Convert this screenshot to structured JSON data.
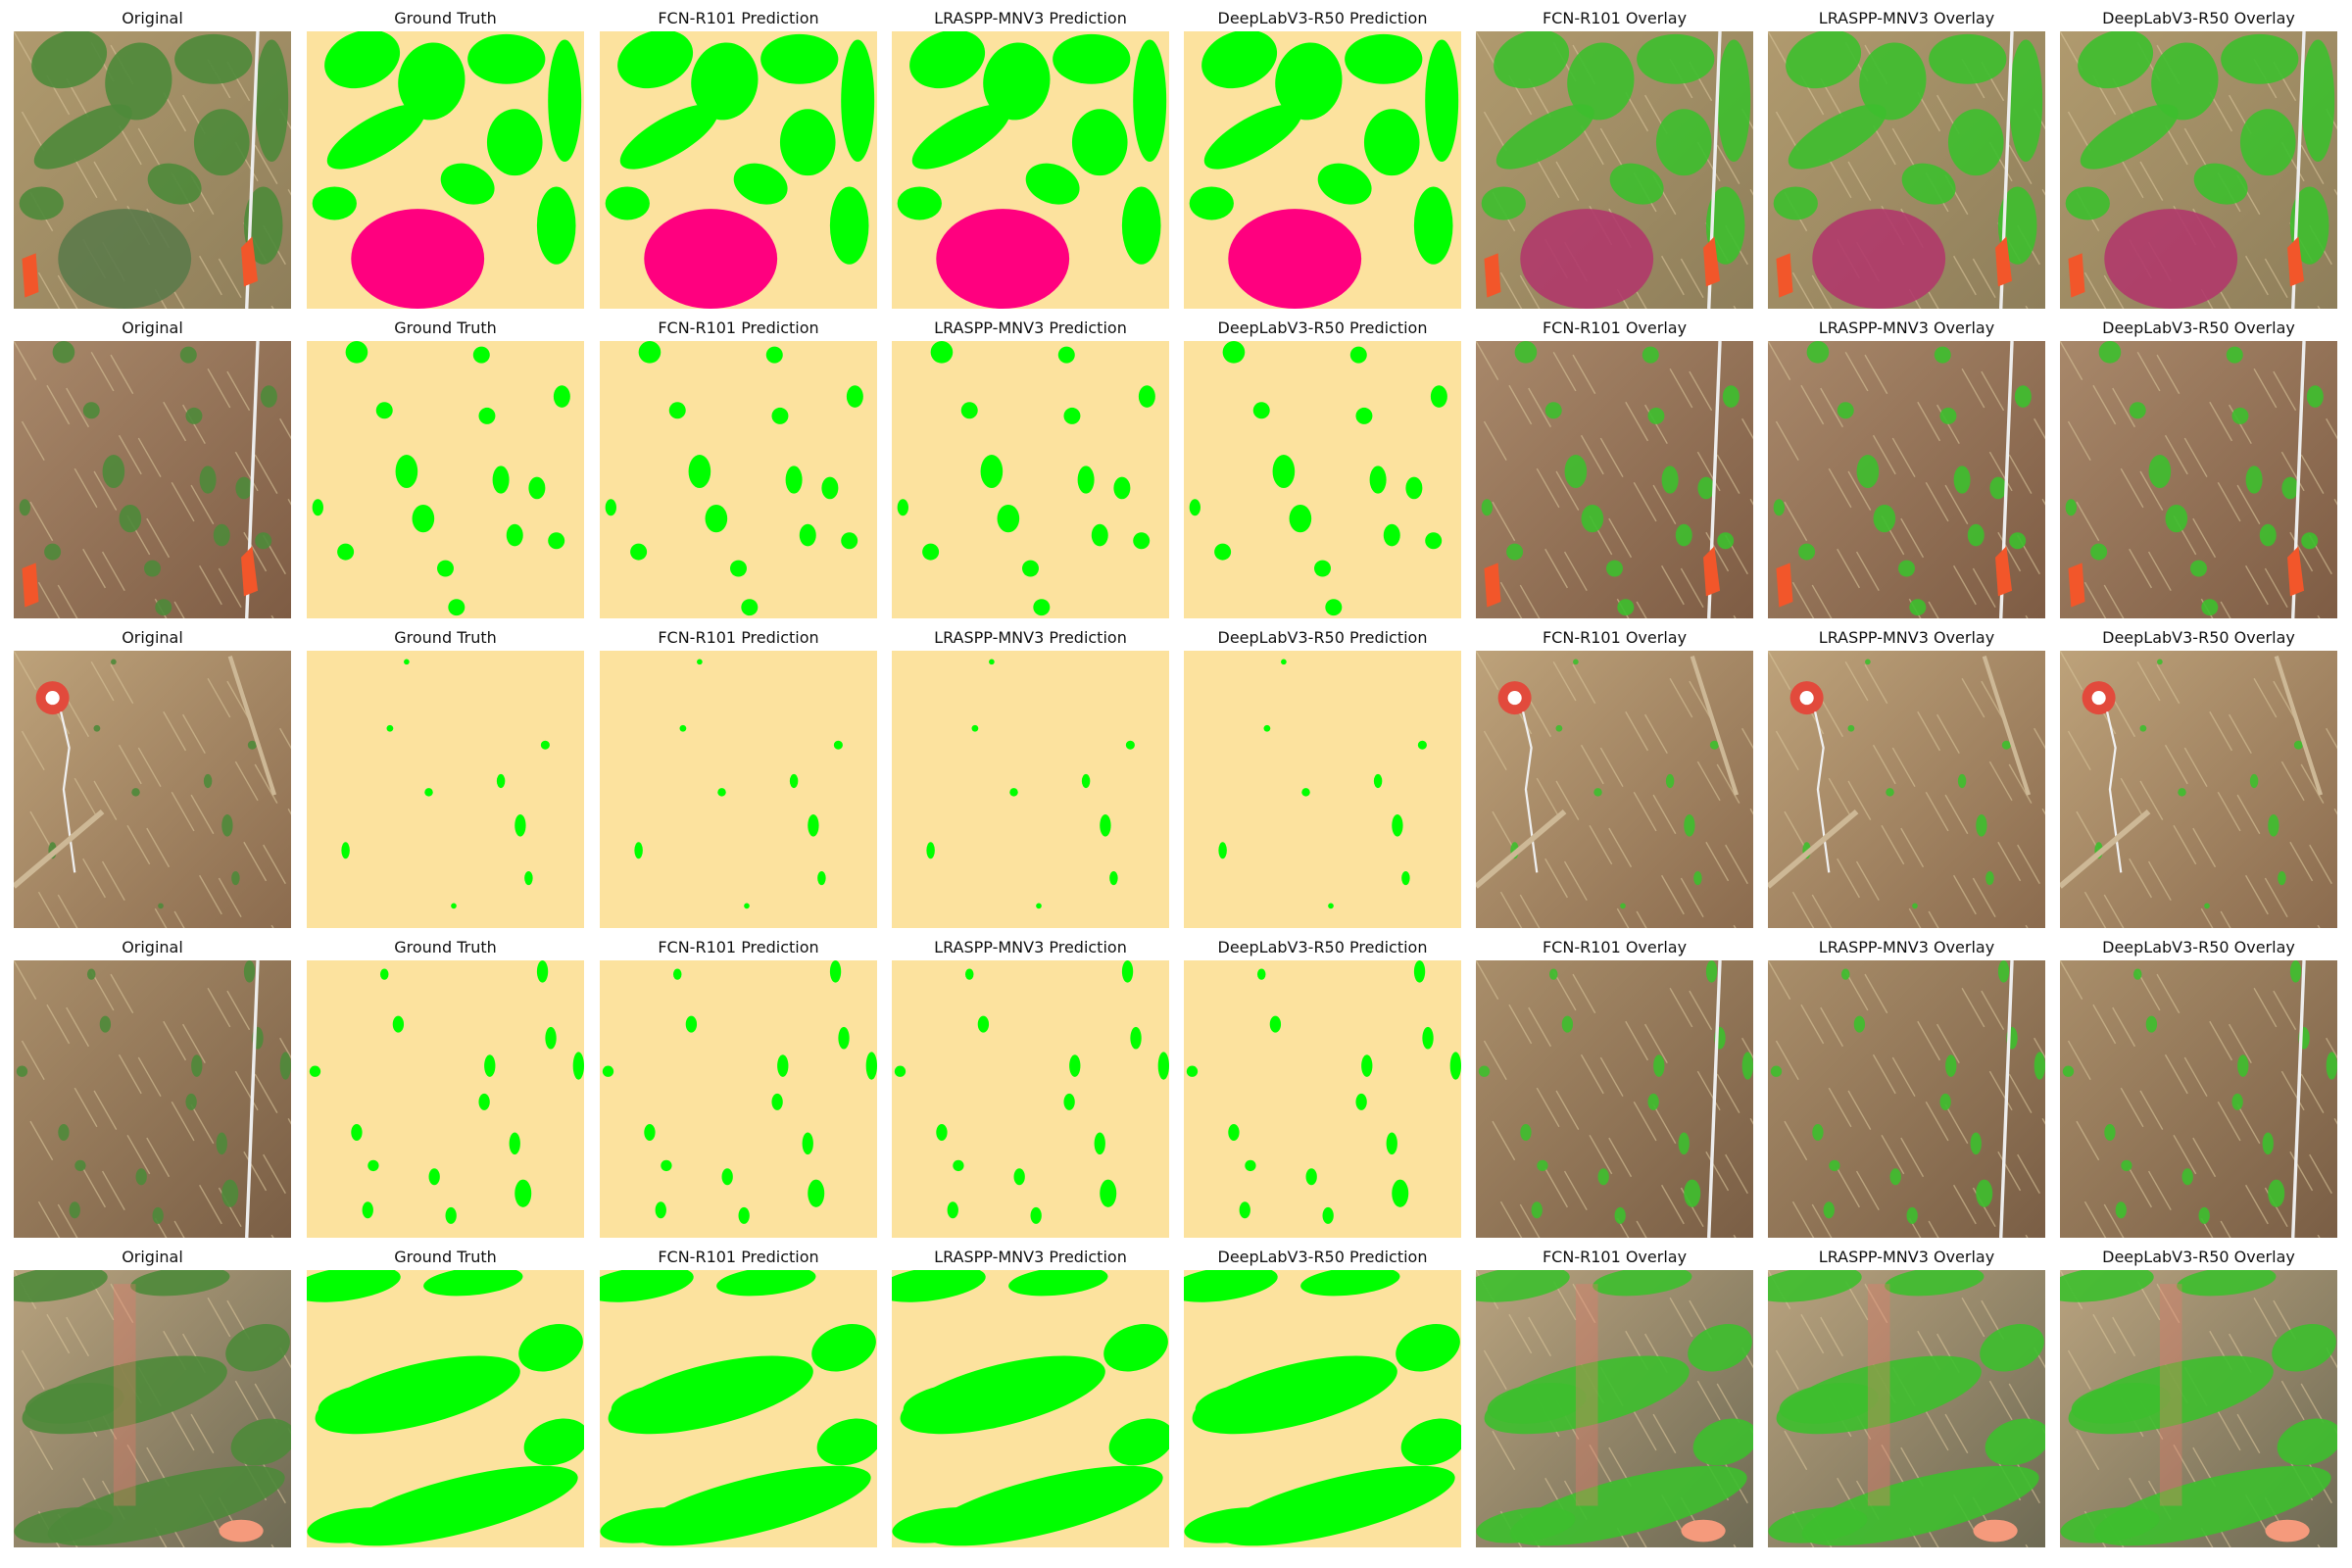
{
  "figure": {
    "columns": [
      {
        "title": "Original",
        "kind": "photo"
      },
      {
        "title": "Ground Truth",
        "kind": "mask"
      },
      {
        "title": "FCN-R101 Prediction",
        "kind": "mask"
      },
      {
        "title": "LRASPP-MNV3 Prediction",
        "kind": "mask"
      },
      {
        "title": "DeepLabV3-R50 Prediction",
        "kind": "mask"
      },
      {
        "title": "FCN-R101 Overlay",
        "kind": "overlay"
      },
      {
        "title": "LRASPP-MNV3 Overlay",
        "kind": "overlay"
      },
      {
        "title": "DeepLabV3-R50 Overlay",
        "kind": "overlay"
      }
    ],
    "rows": [
      {
        "scene": "dense-crop-with-magenta-weed",
        "flags": [
          "orange-flag-left",
          "orange-flag-right",
          "white-pole"
        ]
      },
      {
        "scene": "sparse-seedlings-red-soil",
        "flags": [
          "orange-flag-left",
          "orange-flag-right",
          "white-pole"
        ]
      },
      {
        "scene": "very-sparse-seedlings-with-target",
        "flags": [
          "target-marker",
          "white-rope",
          "wooden-stick"
        ]
      },
      {
        "scene": "sparse-seedlings-dry-straw",
        "flags": [
          "white-pole"
        ]
      },
      {
        "scene": "dense-rows-tilted",
        "flags": [
          "red-paint",
          "salmon-flag"
        ]
      }
    ]
  },
  "colors": {
    "background_class": "#FCE29E",
    "crop_class": "#00FF00",
    "weed_class": "#FF007F",
    "other_class": "#FF00FF",
    "soil_photo": "#A08A62",
    "straw_photo": "#C6AD80",
    "leaf_photo": "#4E8A3A",
    "flag_orange": "#F2562A",
    "salmon_flag": "#F59A7C",
    "target_red": "#E24A3C"
  }
}
